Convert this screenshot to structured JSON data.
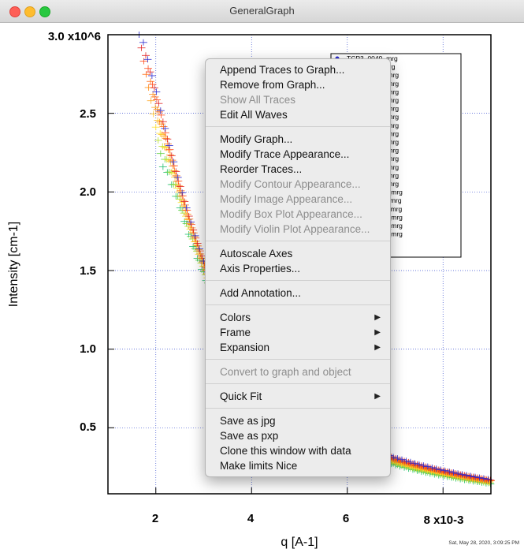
{
  "window": {
    "title": "GeneralGraph"
  },
  "chart_data": {
    "type": "scatter",
    "xlabel": "q [A-1]",
    "ylabel": "Intensity [cm-1]",
    "x_ticks": [
      "2",
      "4",
      "6",
      "8 x10-3"
    ],
    "y_ticks": [
      "0.5",
      "1.0",
      "1.5",
      "2.0",
      "2.5",
      "3.0 x10^6"
    ],
    "xlim": [
      0.001,
      0.009
    ],
    "ylim": [
      80000,
      3000000
    ],
    "grid": true,
    "legend_position": "top-right",
    "legend": [
      "TCP3_0049_mrg",
      "3min_0051_mrg",
      "10min_0053_mrg",
      "17min_0055_mrg",
      "23min_0057_mrg",
      "30min_0059_mrg",
      "37min_0061_mrg",
      "43min_0063_mrg",
      "50min_0065_mrg",
      "57min_0067_mrg",
      "63min_0069_mrg",
      "71min_0071_mrg",
      "78min_0073_mrg",
      "84min_0075_mrg",
      "91min_0077_mrg",
      "98min_0079_mrg",
      "104min_0081_mrg",
      "111min_0083_mrg",
      "118min_0085_mrg",
      "124min_0087_mrg",
      "131min_0089_mrg",
      "155min_0091_mrg",
      "mrg"
    ],
    "series_colors": [
      "#2a2ad0",
      "#e02020",
      "#ff4a1a",
      "#ff6a10",
      "#ff8a10",
      "#ffa520",
      "#ffc020",
      "#ffe030",
      "#b8e030",
      "#60d040",
      "#20c070"
    ],
    "series_model": {
      "x": [
        0.0017,
        0.002,
        0.0025,
        0.003,
        0.0035,
        0.004,
        0.005,
        0.006,
        0.007,
        0.008,
        0.009
      ],
      "y": [
        3000000,
        2650000,
        2050000,
        1560000,
        1210000,
        950000,
        630000,
        430000,
        310000,
        230000,
        170000
      ]
    }
  },
  "stamp": "Sat, May 28, 2020, 3:09:25 PM",
  "menu": {
    "groups": [
      [
        {
          "label": "Append Traces to Graph...",
          "enabled": true
        },
        {
          "label": "Remove from Graph...",
          "enabled": true
        },
        {
          "label": "Show All Traces",
          "enabled": false
        },
        {
          "label": "Edit All Waves",
          "enabled": true
        }
      ],
      [
        {
          "label": "Modify Graph...",
          "enabled": true
        },
        {
          "label": "Modify Trace Appearance...",
          "enabled": true
        },
        {
          "label": "Reorder Traces...",
          "enabled": true
        },
        {
          "label": "Modify Contour Appearance...",
          "enabled": false
        },
        {
          "label": "Modify Image Appearance...",
          "enabled": false
        },
        {
          "label": "Modify Box Plot Appearance...",
          "enabled": false
        },
        {
          "label": "Modify Violin Plot Appearance...",
          "enabled": false
        }
      ],
      [
        {
          "label": "Autoscale Axes",
          "enabled": true
        },
        {
          "label": "Axis Properties...",
          "enabled": true
        }
      ],
      [
        {
          "label": "Add Annotation...",
          "enabled": true
        }
      ],
      [
        {
          "label": "Colors",
          "enabled": true,
          "submenu": true
        },
        {
          "label": "Frame",
          "enabled": true,
          "submenu": true
        },
        {
          "label": "Expansion",
          "enabled": true,
          "submenu": true
        }
      ],
      [
        {
          "label": "Convert to graph and object",
          "enabled": false
        }
      ],
      [
        {
          "label": "Quick Fit",
          "enabled": true,
          "submenu": true
        }
      ],
      [
        {
          "label": "Save as jpg",
          "enabled": true
        },
        {
          "label": "Save as pxp",
          "enabled": true
        },
        {
          "label": "Clone this window with data",
          "enabled": true
        },
        {
          "label": "Make limits Nice",
          "enabled": true
        }
      ]
    ]
  }
}
